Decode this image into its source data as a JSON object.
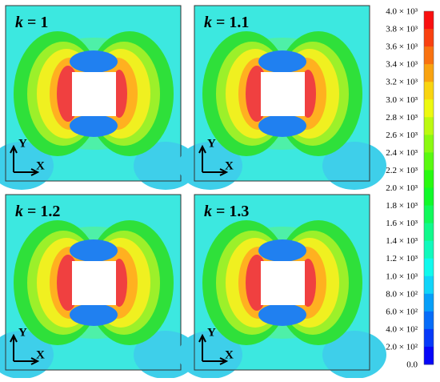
{
  "panels": [
    {
      "symbol": "k",
      "value": "= 1",
      "y_axis": "Y",
      "x_axis": "X"
    },
    {
      "symbol": "k",
      "value": "= 1.1",
      "y_axis": "Y",
      "x_axis": "X"
    },
    {
      "symbol": "k",
      "value": "= 1.2",
      "y_axis": "Y",
      "x_axis": "X"
    },
    {
      "symbol": "k",
      "value": "= 1.3",
      "y_axis": "Y",
      "x_axis": "X"
    }
  ],
  "colorbar": {
    "ticks": [
      "4.0 × 10³",
      "3.8 × 10³",
      "3.6 × 10³",
      "3.4 × 10³",
      "3.2 × 10³",
      "3.0 × 10³",
      "2.8 × 10³",
      "2.6 × 10³",
      "2.4 × 10³",
      "2.2 × 10³",
      "2.0 × 10³",
      "1.8 × 10³",
      "1.6 × 10³",
      "1.4 × 10³",
      "1.2 × 10³",
      "1.0 × 10³",
      "8.0 × 10²",
      "6.0 × 10²",
      "4.0 × 10²",
      "2.0 × 10²",
      "0.0"
    ]
  }
}
